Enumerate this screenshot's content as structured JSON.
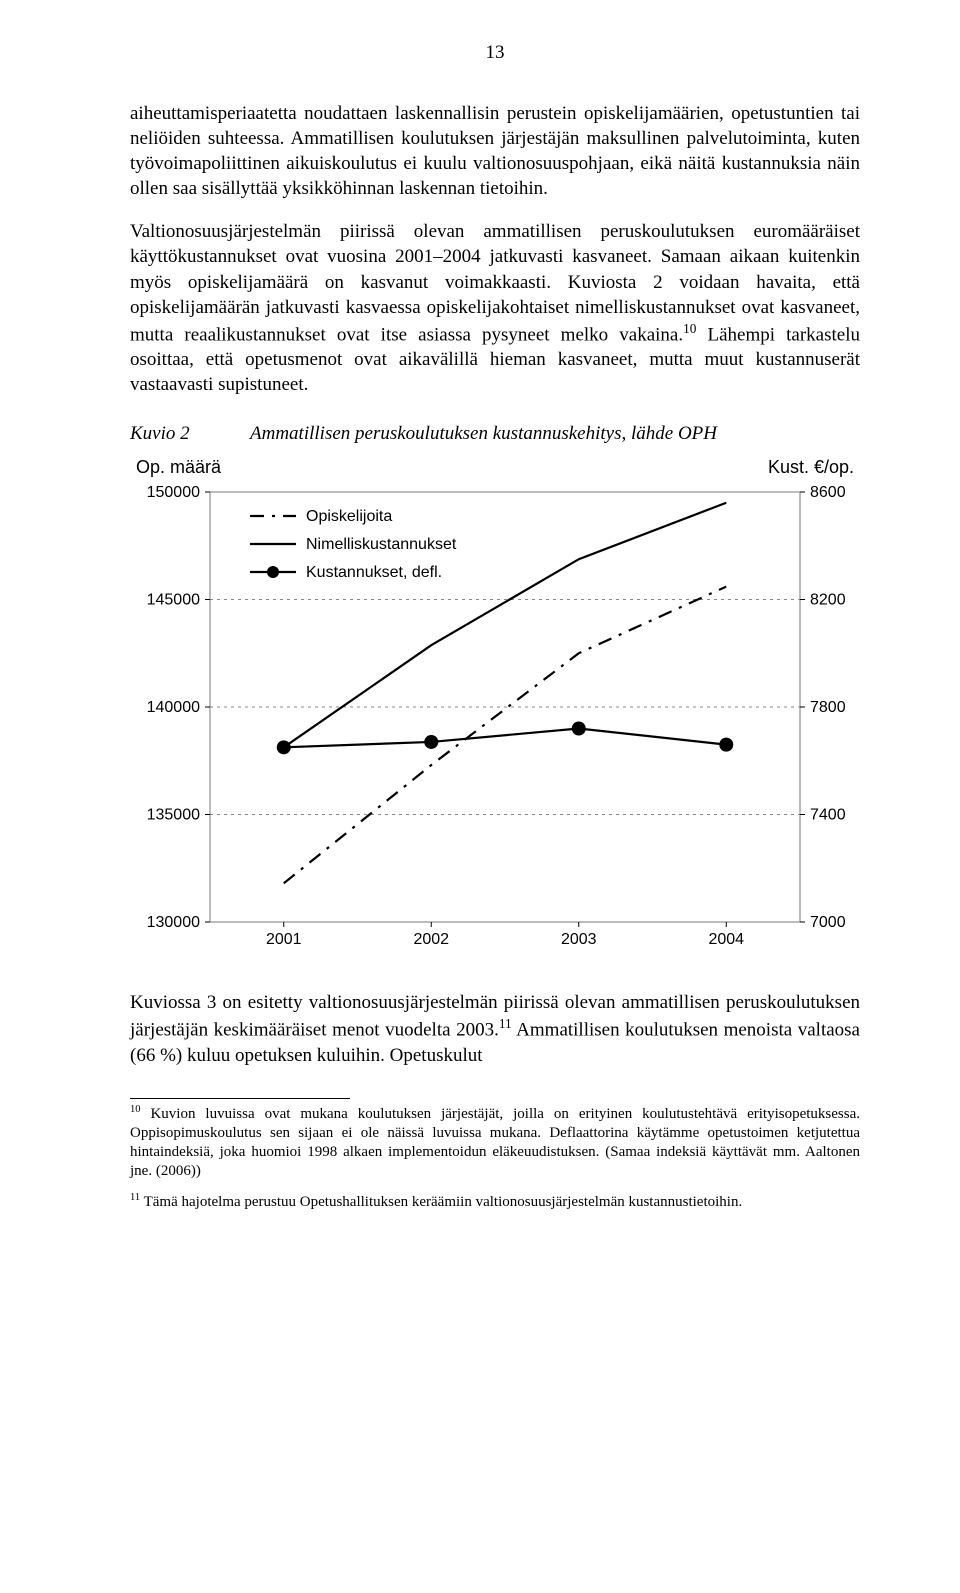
{
  "page_number": "13",
  "paragraphs": {
    "p1": "aiheuttamisperiaatetta noudattaen laskennallisin perustein opiskelijamäärien, opetustuntien tai neliöiden suhteessa. Ammatillisen koulutuksen järjestäjän maksullinen palvelutoiminta, kuten työvoimapoliittinen aikuiskoulutus ei kuulu valtionosuuspohjaan, eikä näitä kustannuksia näin ollen saa sisällyttää yksikköhinnan laskennan tietoihin.",
    "p2_a": "Valtionosuusjärjestelmän piirissä olevan ammatillisen peruskoulutuksen euromääräiset käyttökustannukset ovat vuosina 2001–2004 jatkuvasti kasvaneet. Samaan aikaan kuitenkin myös opiskelijamäärä on kasvanut voimakkaasti. Kuviosta 2 voidaan havaita, että opiskelijamäärän jatkuvasti kasvaessa opiskelijakohtaiset nimelliskustannukset ovat kasvaneet, mutta reaalikustannukset ovat itse asiassa pysyneet melko vakaina.",
    "p2_b": " Lähempi tarkastelu osoittaa, että opetusmenot ovat aikavälillä hieman kasvaneet, mutta muut kustannuserät vastaavasti supistuneet.",
    "p3_a": "Kuviossa 3 on esitetty valtionosuusjärjestelmän piirissä olevan ammatillisen peruskoulutuksen järjestäjän keskimääräiset menot vuodelta 2003.",
    "p3_b": " Ammatillisen koulutuksen menoista valtaosa (66 %) kuluu opetuksen kuluihin. Opetuskulut"
  },
  "kuvio": {
    "label": "Kuvio 2",
    "title": "Ammatillisen peruskoulutuksen kustannuskehitys, lähde OPH"
  },
  "chart": {
    "left_axis_label": "Op. määrä",
    "right_axis_label": "Kust. €/op.",
    "x_categories": [
      "2001",
      "2002",
      "2003",
      "2004"
    ],
    "left_ticks": [
      "150000",
      "145000",
      "140000",
      "135000",
      "130000"
    ],
    "right_ticks": [
      "8600",
      "8200",
      "7800",
      "7400",
      "7000"
    ],
    "y_left_min": 130000,
    "y_left_max": 150000,
    "y_right_min": 7000,
    "y_right_max": 8600,
    "legend": {
      "opiskelijoita": "Opiskelijoita",
      "nimellis": "Nimelliskustannukset",
      "defl": "Kustannukset, defl."
    },
    "series": {
      "opiskelijoita": {
        "type": "line-dashdot",
        "color": "#000000",
        "width": 2.2,
        "values_left": [
          131800,
          137300,
          142500,
          145600
        ]
      },
      "nimellis": {
        "type": "line",
        "color": "#000000",
        "width": 2.2,
        "values_right": [
          7650,
          8030,
          8350,
          8560
        ]
      },
      "defl": {
        "type": "line-markers",
        "color": "#000000",
        "width": 2.2,
        "marker_radius": 7,
        "values_right": [
          7650,
          7670,
          7720,
          7660
        ]
      }
    },
    "grid_color": "#888888",
    "background": "#ffffff",
    "border_color": "#7a7a7a",
    "tick_fontsize": 16,
    "legend_fontsize": 16
  },
  "footnotes": {
    "f10_sup": "10",
    "f10": " Kuvion luvuissa ovat mukana koulutuksen järjestäjät, joilla on erityinen koulutustehtävä erityisopetuksessa. Oppisopimuskoulutus sen sijaan ei ole näissä luvuissa mukana. Deflaattorina käytämme opetustoimen ketjutettua hintaindeksiä, joka huomioi 1998 alkaen implementoidun eläkeuudistuksen. (Samaa indeksiä käyttävät mm. Aaltonen jne. (2006))",
    "f11_sup": "11",
    "f11": " Tämä hajotelma perustuu Opetushallituksen keräämiin valtionosuusjärjestelmän kustannustietoihin."
  },
  "inline_sup": {
    "s10": "10",
    "s11": "11"
  }
}
